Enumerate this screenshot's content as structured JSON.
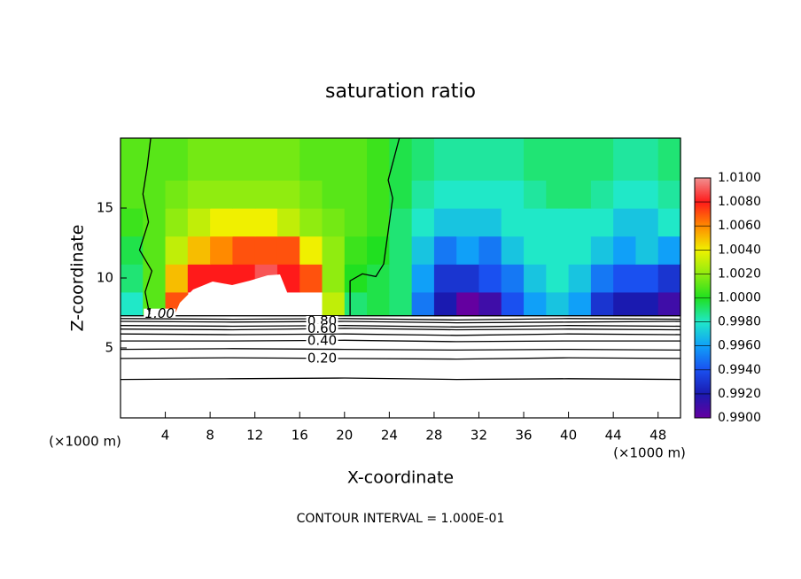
{
  "chart_data": {
    "type": "contour",
    "title": "saturation ratio",
    "x_label": "X-coordinate",
    "y_label": "Z-coordinate",
    "x_unit_labels": [
      "(×1000 m)",
      "(×1000 m)"
    ],
    "footer": "CONTOUR INTERVAL = 1.000E-01",
    "xlim": [
      0,
      50
    ],
    "ylim": [
      0,
      20
    ],
    "xticks": [
      4,
      8,
      12,
      16,
      20,
      24,
      28,
      32,
      36,
      40,
      44,
      48
    ],
    "yticks": [
      5,
      10,
      15
    ],
    "clim": [
      0.99,
      1.01
    ],
    "colorbar": {
      "ticks": [
        {
          "value": 0.99,
          "label": "0.9900"
        },
        {
          "value": 0.992,
          "label": "0.9920"
        },
        {
          "value": 0.994,
          "label": "0.9940"
        },
        {
          "value": 0.996,
          "label": "0.9960"
        },
        {
          "value": 0.998,
          "label": "0.9980"
        },
        {
          "value": 1.0,
          "label": "1.0000"
        },
        {
          "value": 1.002,
          "label": "1.0020"
        },
        {
          "value": 1.004,
          "label": "1.0040"
        },
        {
          "value": 1.006,
          "label": "1.0060"
        },
        {
          "value": 1.008,
          "label": "1.0080"
        },
        {
          "value": 1.01,
          "label": "1.0100"
        }
      ],
      "colors": [
        "#6400a0",
        "#1a1ab0",
        "#1a50f0",
        "#10a0f8",
        "#20e8c8",
        "#20e020",
        "#90ec10",
        "#f0f000",
        "#ff8a00",
        "#ff1a1a",
        "#f09090"
      ]
    },
    "field": {
      "x_edges": [
        0,
        2,
        4,
        6,
        8,
        10,
        12,
        14,
        16,
        18,
        20,
        22,
        24,
        26,
        28,
        30,
        32,
        34,
        36,
        38,
        40,
        42,
        44,
        46,
        48,
        50
      ],
      "z_edges": [
        7.3,
        9,
        11,
        13,
        15,
        17,
        20
      ],
      "values": [
        [
          0.998,
          1.001,
          1.007,
          null,
          null,
          null,
          null,
          null,
          null,
          1.003,
          0.999,
          0.9995,
          0.999,
          0.995,
          0.992,
          0.99,
          0.991,
          0.994,
          0.996,
          0.997,
          0.996,
          0.993,
          0.992,
          0.992,
          0.991
        ],
        [
          0.999,
          1.001,
          1.005,
          1.008,
          1.008,
          1.008,
          1.009,
          1.008,
          1.007,
          1.002,
          1.0,
          0.9995,
          0.999,
          0.996,
          0.993,
          0.993,
          0.994,
          0.995,
          0.997,
          0.998,
          0.997,
          0.995,
          0.994,
          0.994,
          0.993
        ],
        [
          0.9995,
          1.001,
          1.003,
          1.005,
          1.006,
          1.007,
          1.007,
          1.007,
          1.004,
          1.002,
          1.0005,
          1.0,
          0.999,
          0.997,
          0.995,
          0.996,
          0.995,
          0.997,
          0.998,
          0.998,
          0.998,
          0.997,
          0.996,
          0.997,
          0.996
        ],
        [
          1.0005,
          1.001,
          1.002,
          1.003,
          1.004,
          1.004,
          1.004,
          1.003,
          1.002,
          1.0015,
          1.001,
          1.0005,
          0.999,
          0.998,
          0.997,
          0.997,
          0.997,
          0.998,
          0.998,
          0.998,
          0.998,
          0.998,
          0.997,
          0.997,
          0.998
        ],
        [
          1.001,
          1.001,
          1.0015,
          1.002,
          1.002,
          1.002,
          1.002,
          1.002,
          1.0015,
          1.001,
          1.001,
          1.0005,
          0.9995,
          0.9985,
          0.998,
          0.998,
          0.998,
          0.998,
          0.9985,
          0.999,
          0.999,
          0.9985,
          0.998,
          0.998,
          0.9985
        ],
        [
          1.001,
          1.001,
          1.001,
          1.0015,
          1.0015,
          1.0015,
          1.0015,
          1.0015,
          1.001,
          1.001,
          1.001,
          1.0005,
          0.9995,
          0.999,
          0.9985,
          0.9985,
          0.9985,
          0.9985,
          0.999,
          0.999,
          0.999,
          0.999,
          0.9985,
          0.9985,
          0.999
        ]
      ]
    },
    "contours": [
      {
        "level": 1.0,
        "label": "1.00",
        "x": [
          0,
          50
        ],
        "z": [
          7.3,
          7.3
        ]
      },
      {
        "level": 0.9,
        "x": [
          0,
          10,
          20,
          30,
          40,
          50
        ],
        "z": [
          7.1,
          7.05,
          7.1,
          7.0,
          7.1,
          7.05
        ]
      },
      {
        "level": 0.8,
        "label": "0.80",
        "x": [
          0,
          10,
          20,
          30,
          40,
          50
        ],
        "z": [
          6.9,
          6.85,
          6.9,
          6.8,
          6.85,
          6.9
        ]
      },
      {
        "level": 0.7,
        "x": [
          0,
          10,
          20,
          30,
          40,
          50
        ],
        "z": [
          6.6,
          6.55,
          6.6,
          6.5,
          6.6,
          6.55
        ]
      },
      {
        "level": 0.6,
        "label": "0.60",
        "x": [
          0,
          10,
          20,
          30,
          40,
          50
        ],
        "z": [
          6.35,
          6.3,
          6.4,
          6.3,
          6.35,
          6.3
        ]
      },
      {
        "level": 0.5,
        "x": [
          0,
          10,
          20,
          30,
          40,
          50
        ],
        "z": [
          6.0,
          5.95,
          6.0,
          5.9,
          6.0,
          5.95
        ]
      },
      {
        "level": 0.4,
        "label": "0.40",
        "x": [
          0,
          10,
          20,
          30,
          40,
          50
        ],
        "z": [
          5.5,
          5.5,
          5.55,
          5.45,
          5.5,
          5.5
        ]
      },
      {
        "level": 0.3,
        "x": [
          0,
          10,
          20,
          30,
          40,
          50
        ],
        "z": [
          4.9,
          4.95,
          4.9,
          4.85,
          4.9,
          4.85
        ]
      },
      {
        "level": 0.2,
        "label": "0.20",
        "x": [
          0,
          10,
          20,
          30,
          40,
          50
        ],
        "z": [
          4.25,
          4.3,
          4.25,
          4.2,
          4.3,
          4.25
        ]
      },
      {
        "level": 0.1,
        "x": [
          0,
          10,
          20,
          30,
          40,
          50
        ],
        "z": [
          2.75,
          2.8,
          2.85,
          2.75,
          2.8,
          2.75
        ]
      },
      {
        "level": 1.0,
        "x": [
          2.6,
          2.2,
          2.8,
          1.7,
          2.5,
          2.0,
          2.4,
          2.7
        ],
        "z": [
          7.4,
          9,
          10.5,
          12,
          14,
          16,
          18,
          20
        ]
      },
      {
        "level": 1.0,
        "x": [
          20.5,
          20.5,
          21.6,
          22.8,
          23.5,
          24.3,
          23.9,
          24.9
        ],
        "z": [
          7.3,
          9.8,
          10.3,
          10.1,
          11,
          15.7,
          17,
          20
        ]
      }
    ]
  }
}
